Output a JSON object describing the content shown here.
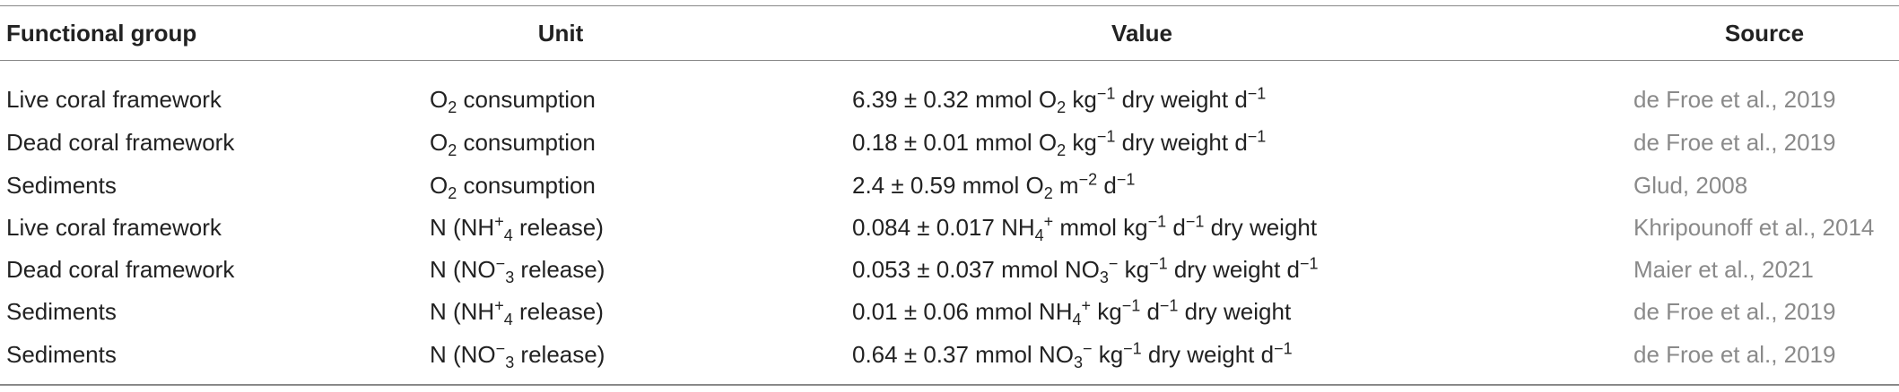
{
  "table": {
    "header": [
      "Functional group",
      "Unit",
      "Value",
      "Source"
    ],
    "rows": [
      [
        "Live coral framework",
        [
          "O",
          {
            "sub": "2"
          },
          " consumption"
        ],
        [
          "6.39 ± 0.32 mmol O",
          {
            "sub": "2"
          },
          " kg",
          {
            "sup": "−1"
          },
          " dry weight d",
          {
            "sup": "−1"
          }
        ],
        "de Froe et al., 2019"
      ],
      [
        "Dead coral framework",
        [
          "O",
          {
            "sub": "2"
          },
          " consumption"
        ],
        [
          "0.18 ± 0.01 mmol O",
          {
            "sub": "2"
          },
          " kg",
          {
            "sup": "−1"
          },
          " dry weight d",
          {
            "sup": "−1"
          }
        ],
        "de Froe et al., 2019"
      ],
      [
        "Sediments",
        [
          "O",
          {
            "sub": "2"
          },
          " consumption"
        ],
        [
          "2.4 ± 0.59 mmol O",
          {
            "sub": "2"
          },
          " m",
          {
            "sup": "−2"
          },
          " d",
          {
            "sup": "−1"
          }
        ],
        "Glud, 2008"
      ],
      [
        "Live coral framework",
        [
          "N (NH",
          {
            "sup": "+"
          },
          {
            "sub": "4"
          },
          " release)"
        ],
        [
          "0.084 ± 0.017 NH",
          {
            "sub": "4"
          },
          {
            "sup": "+"
          },
          " mmol kg",
          {
            "sup": "−1"
          },
          " d",
          {
            "sup": "−1"
          },
          " dry weight"
        ],
        "Khripounoff et al., 2014"
      ],
      [
        "Dead coral framework",
        [
          "N (NO",
          {
            "sup": "−"
          },
          {
            "sub": "3"
          },
          " release)"
        ],
        [
          "0.053 ± 0.037 mmol NO",
          {
            "sub": "3"
          },
          {
            "sup": "−"
          },
          " kg",
          {
            "sup": "−1"
          },
          " dry weight d",
          {
            "sup": "−1"
          }
        ],
        "Maier et al., 2021"
      ],
      [
        "Sediments",
        [
          "N (NH",
          {
            "sup": "+"
          },
          {
            "sub": "4"
          },
          " release)"
        ],
        [
          "0.01 ± 0.06 mmol NH",
          {
            "sub": "4"
          },
          {
            "sup": "+"
          },
          " kg",
          {
            "sup": "−1"
          },
          " d",
          {
            "sup": "−1"
          },
          " dry weight"
        ],
        "de Froe et al., 2019"
      ],
      [
        "Sediments",
        [
          "N (NO",
          {
            "sup": "−"
          },
          {
            "sub": "3"
          },
          " release)"
        ],
        [
          "0.64 ± 0.37 mmol NO",
          {
            "sub": "3"
          },
          {
            "sup": "−"
          },
          " kg",
          {
            "sup": "−1"
          },
          " dry weight d",
          {
            "sup": "−1"
          }
        ],
        "de Froe et al., 2019"
      ]
    ]
  }
}
